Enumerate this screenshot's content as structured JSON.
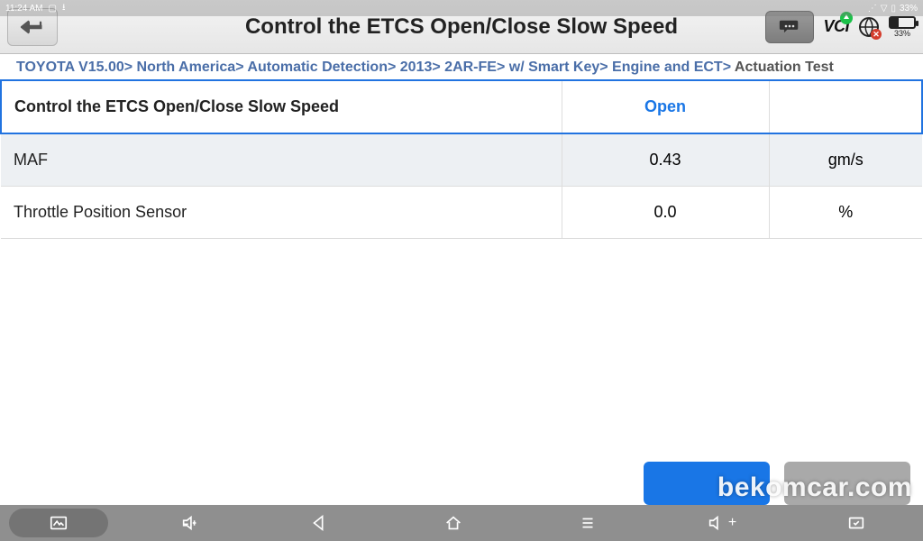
{
  "status": {
    "time": "11:24 AM",
    "battery_top": "33%"
  },
  "header": {
    "title": "Control the ETCS Open/Close Slow Speed",
    "vci_label": "VCI",
    "battery_pct": "33%"
  },
  "breadcrumb": {
    "items": [
      "TOYOTA V15.00",
      "North America",
      "Automatic Detection",
      "2013",
      "2AR-FE",
      "w/ Smart Key",
      "Engine and ECT"
    ],
    "current": "Actuation Test"
  },
  "table": {
    "rows": [
      {
        "name": "Control the ETCS Open/Close Slow Speed",
        "value": "Open",
        "unit": "",
        "highlight": true,
        "alt": false
      },
      {
        "name": "MAF",
        "value": "0.43",
        "unit": "gm/s",
        "highlight": false,
        "alt": true
      },
      {
        "name": "Throttle Position Sensor",
        "value": "0.0",
        "unit": "%",
        "highlight": false,
        "alt": false
      }
    ]
  },
  "watermark": "bekomcar.com",
  "colors": {
    "accent": "#1976e6",
    "breadcrumb_link": "#4a6ea8",
    "row_alt": "#edf0f3",
    "navbar": "#8f8f8f"
  }
}
